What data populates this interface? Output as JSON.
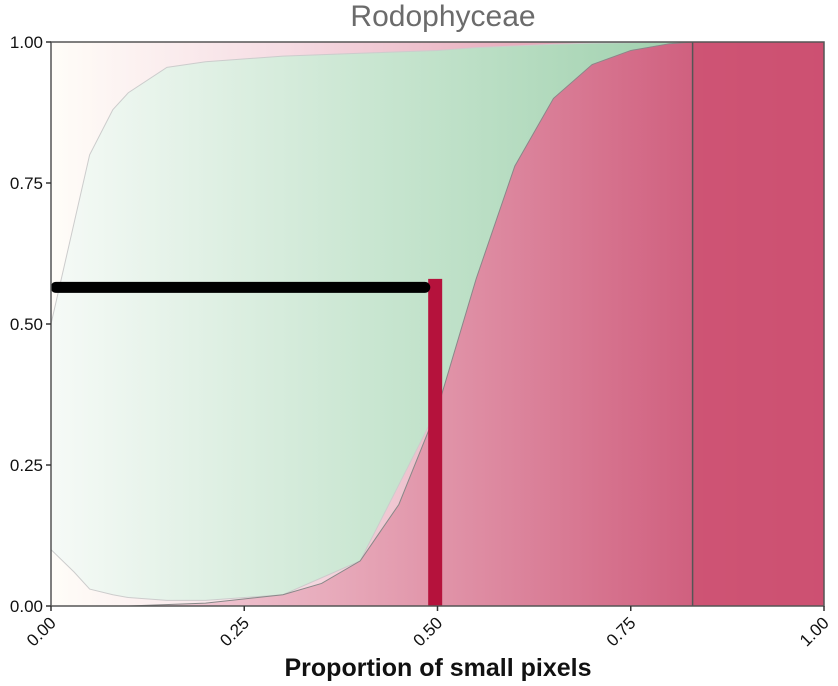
{
  "chart_data": {
    "type": "area",
    "title": "Rodophyceae",
    "xlabel": "Proportion of small pixels",
    "ylabel": "",
    "xlim": [
      0,
      1
    ],
    "ylim": [
      0,
      1
    ],
    "x_ticks": [
      "0.00",
      "0.25",
      "0.50",
      "0.75",
      "1.00"
    ],
    "y_ticks": [
      "0.00",
      "0.25",
      "0.50",
      "0.75",
      "1.00"
    ],
    "series": [
      {
        "type": "area-band",
        "fill": "#a8d5b5",
        "x": [
          0.0,
          0.03,
          0.05,
          0.08,
          0.1,
          0.15,
          0.2,
          0.3,
          0.4,
          0.5,
          0.55,
          0.6,
          0.65,
          0.7,
          0.75,
          0.8,
          0.83
        ],
        "upper": [
          0.5,
          0.68,
          0.8,
          0.88,
          0.91,
          0.955,
          0.965,
          0.975,
          0.98,
          0.985,
          0.99,
          0.993,
          0.996,
          0.998,
          0.999,
          1.0,
          1.0
        ],
        "lower": [
          0.1,
          0.06,
          0.03,
          0.02,
          0.015,
          0.01,
          0.01,
          0.02,
          0.08,
          0.35,
          0.58,
          0.78,
          0.9,
          0.96,
          0.985,
          0.997,
          1.0
        ]
      },
      {
        "type": "area-below",
        "fill": "#d4587a",
        "x": [
          0.0,
          0.1,
          0.2,
          0.3,
          0.35,
          0.4,
          0.45,
          0.5,
          0.55,
          0.6,
          0.65,
          0.7,
          0.75,
          0.8,
          0.83
        ],
        "y": [
          0.0,
          0.0,
          0.005,
          0.02,
          0.04,
          0.08,
          0.18,
          0.35,
          0.58,
          0.78,
          0.9,
          0.96,
          0.985,
          0.997,
          1.0
        ]
      }
    ],
    "hline": {
      "x_start": 0.0,
      "x_end": 0.49,
      "y": 0.565,
      "color": "#000000"
    },
    "bar": {
      "x": 0.497,
      "y": 0.58,
      "color": "#b5123c"
    },
    "vline": {
      "x": 0.83,
      "color": "#555555"
    },
    "grid": false
  }
}
